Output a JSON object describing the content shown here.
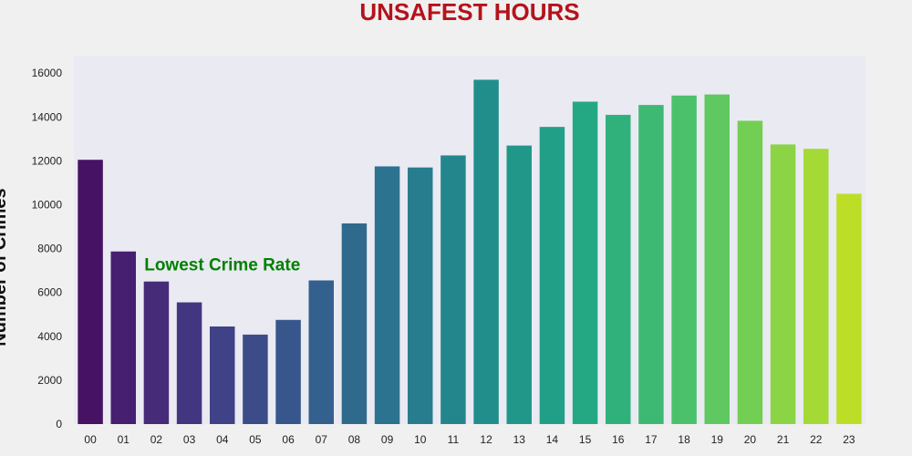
{
  "chart_data": {
    "type": "bar",
    "title": "UNSAFEST HOURS",
    "ylabel": "Number of Crimes",
    "xlabel": "",
    "categories": [
      "00",
      "01",
      "02",
      "03",
      "04",
      "05",
      "06",
      "07",
      "08",
      "09",
      "10",
      "11",
      "12",
      "13",
      "14",
      "15",
      "16",
      "17",
      "18",
      "19",
      "20",
      "21",
      "22",
      "23"
    ],
    "values": [
      12050,
      7870,
      6500,
      5550,
      4450,
      4080,
      4750,
      6550,
      9150,
      11750,
      11700,
      12250,
      15700,
      12700,
      13550,
      14700,
      14100,
      14550,
      14980,
      15030,
      13830,
      12750,
      12550,
      10500
    ],
    "ylim": [
      0,
      16800
    ],
    "yticks": [
      0,
      2000,
      4000,
      6000,
      8000,
      10000,
      12000,
      14000,
      16000
    ],
    "grid": false,
    "legend": "none",
    "colormap": "viridis",
    "annotation": {
      "text": "Lowest Crime Rate",
      "x": "04",
      "y": 7000
    },
    "colors": {
      "title": "#b5121b",
      "annotation": "#008000",
      "plot_background": "#eaeaf2"
    }
  }
}
